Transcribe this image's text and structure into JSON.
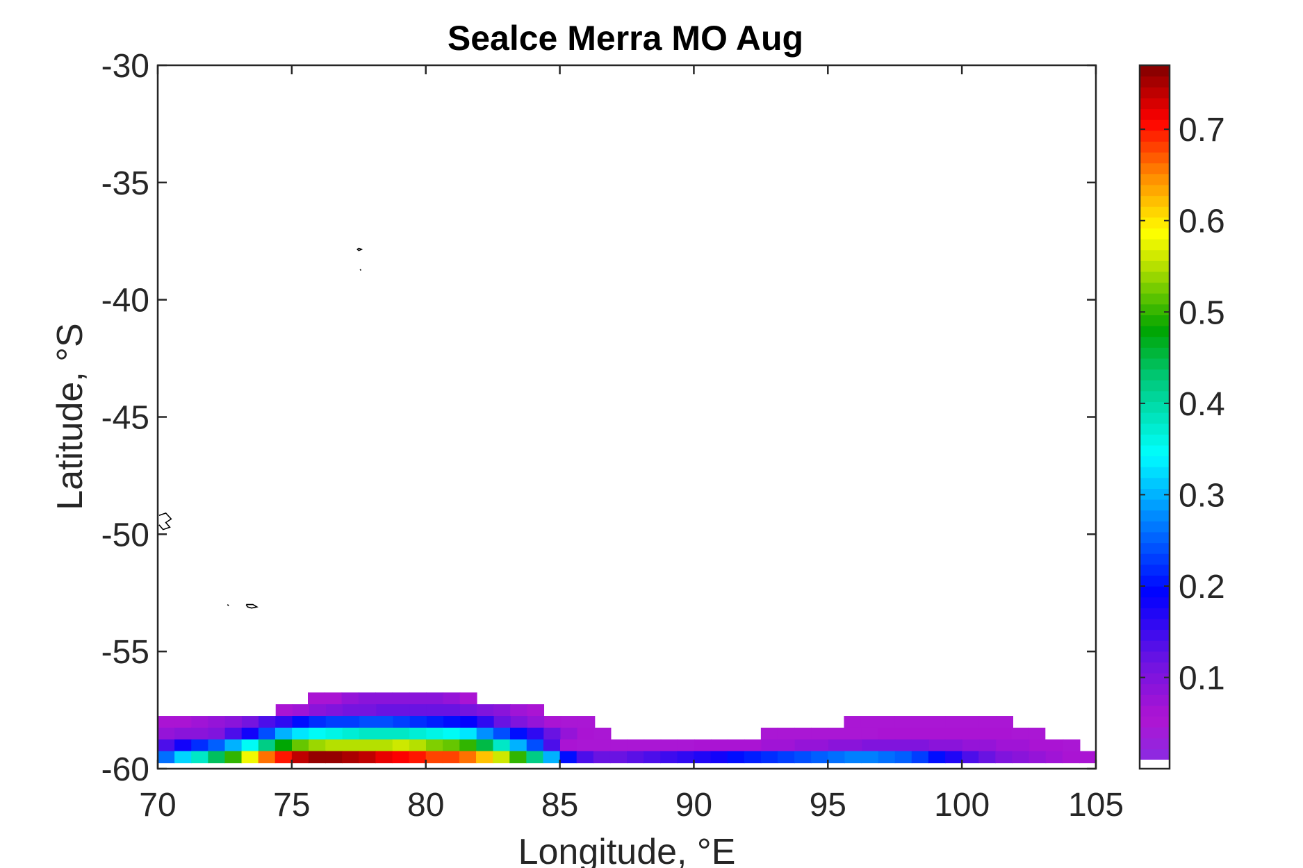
{
  "chart_data": {
    "type": "heatmap",
    "title": "Sealce Merra MO Aug",
    "xlabel": "Longitude, °E",
    "ylabel": "Latitude, °S",
    "xlim": [
      70,
      105
    ],
    "ylim": [
      -60,
      -30
    ],
    "x_ticks": [
      70,
      75,
      80,
      85,
      90,
      95,
      100,
      105
    ],
    "x_tick_labels": [
      "70",
      "75",
      "80",
      "85",
      "90",
      "95",
      "100",
      "105"
    ],
    "y_ticks": [
      -30,
      -35,
      -40,
      -45,
      -50,
      -55,
      -60
    ],
    "y_tick_labels": [
      "-30",
      "-35",
      "-40",
      "-45",
      "-50",
      "-55",
      "-60"
    ],
    "colorbar": {
      "colormap": "jet-with-magenta-low",
      "range": [
        0.01,
        0.77
      ],
      "ticks": [
        0.1,
        0.2,
        0.3,
        0.4,
        0.5,
        0.6,
        0.7
      ],
      "tick_labels": [
        "0.1",
        "0.2",
        "0.3",
        "0.4",
        "0.5",
        "0.6",
        "0.7"
      ],
      "below_min_color": "#ffffff"
    },
    "grid": {
      "cell_lon": 0.625,
      "cell_lat": 0.5,
      "row_lat_centers": [
        -57.0,
        -57.5,
        -58.0,
        -58.5,
        -59.0,
        -59.5
      ],
      "rows": [
        {
          "lat": -57.0,
          "segments": [
            {
              "lon_from": 75.6,
              "lon_to": 81.9,
              "values": [
                0.06,
                0.06,
                0.08,
                0.09,
                0.09,
                0.09,
                0.09,
                0.09,
                0.08,
                0.06
              ]
            }
          ]
        },
        {
          "lat": -57.5,
          "segments": [
            {
              "lon_from": 74.4,
              "lon_to": 84.4,
              "values": [
                0.06,
                0.07,
                0.09,
                0.1,
                0.11,
                0.11,
                0.12,
                0.12,
                0.12,
                0.12,
                0.12,
                0.11,
                0.1,
                0.09,
                0.07,
                0.06
              ]
            }
          ]
        },
        {
          "lat": -58.0,
          "segments": [
            {
              "lon_from": 70.0,
              "lon_to": 86.3,
              "values": [
                0.06,
                0.06,
                0.07,
                0.08,
                0.09,
                0.11,
                0.14,
                0.16,
                0.2,
                0.22,
                0.23,
                0.23,
                0.24,
                0.24,
                0.23,
                0.22,
                0.21,
                0.2,
                0.19,
                0.16,
                0.12,
                0.1,
                0.08,
                0.06,
                0.05,
                0.05
              ]
            },
            {
              "lon_from": 95.6,
              "lon_to": 101.9,
              "values": [
                0.05,
                0.05,
                0.05,
                0.05,
                0.05,
                0.05,
                0.05,
                0.05,
                0.05,
                0.05
              ]
            }
          ]
        },
        {
          "lat": -58.5,
          "segments": [
            {
              "lon_from": 70.0,
              "lon_to": 86.9,
              "values": [
                0.08,
                0.09,
                0.09,
                0.1,
                0.14,
                0.18,
                0.24,
                0.3,
                0.33,
                0.35,
                0.36,
                0.37,
                0.38,
                0.38,
                0.38,
                0.37,
                0.36,
                0.35,
                0.33,
                0.28,
                0.24,
                0.2,
                0.16,
                0.12,
                0.08,
                0.06,
                0.05
              ]
            },
            {
              "lon_from": 92.5,
              "lon_to": 103.1,
              "values": [
                0.05,
                0.05,
                0.05,
                0.05,
                0.05,
                0.05,
                0.05,
                0.06,
                0.06,
                0.06,
                0.06,
                0.06,
                0.06,
                0.06,
                0.06,
                0.05,
                0.05
              ]
            }
          ]
        },
        {
          "lat": -59.0,
          "segments": [
            {
              "lon_from": 70.0,
              "lon_to": 104.4,
              "values": [
                0.14,
                0.18,
                0.22,
                0.25,
                0.3,
                0.35,
                0.42,
                0.48,
                0.52,
                0.54,
                0.55,
                0.55,
                0.55,
                0.55,
                0.56,
                0.55,
                0.53,
                0.52,
                0.5,
                0.45,
                0.38,
                0.3,
                0.24,
                0.14,
                0.06,
                0.05,
                0.05,
                0.05,
                0.05,
                0.05,
                0.05,
                0.05,
                0.06,
                0.06,
                0.06,
                0.06,
                0.07,
                0.07,
                0.08,
                0.08,
                0.09,
                0.09,
                0.1,
                0.1,
                0.1,
                0.1,
                0.09,
                0.09,
                0.08,
                0.08,
                0.07,
                0.07,
                0.06,
                0.06,
                0.05
              ]
            }
          ]
        },
        {
          "lat": -59.5,
          "segments": [
            {
              "lon_from": 70.0,
              "lon_to": 105.0,
              "values": [
                0.26,
                0.32,
                0.38,
                0.44,
                0.5,
                0.58,
                0.66,
                0.7,
                0.74,
                0.76,
                0.76,
                0.75,
                0.74,
                0.72,
                0.71,
                0.7,
                0.68,
                0.68,
                0.66,
                0.62,
                0.56,
                0.5,
                0.42,
                0.3,
                0.2,
                0.14,
                0.12,
                0.12,
                0.13,
                0.14,
                0.15,
                0.16,
                0.17,
                0.18,
                0.2,
                0.21,
                0.22,
                0.23,
                0.24,
                0.25,
                0.26,
                0.27,
                0.27,
                0.26,
                0.25,
                0.23,
                0.2,
                0.17,
                0.14,
                0.12,
                0.1,
                0.09,
                0.08,
                0.07,
                0.06,
                0.06
              ]
            }
          ]
        }
      ]
    },
    "coastline_lonlat": [
      [
        [
          77.5,
          -37.8
        ],
        [
          77.6,
          -37.85
        ],
        [
          77.5,
          -37.9
        ],
        [
          77.45,
          -37.85
        ],
        [
          77.5,
          -37.8
        ]
      ],
      [
        [
          77.55,
          -38.7
        ],
        [
          77.58,
          -38.75
        ]
      ],
      [
        [
          70.05,
          -49.2
        ],
        [
          70.3,
          -49.1
        ],
        [
          70.5,
          -49.35
        ],
        [
          70.3,
          -49.5
        ],
        [
          70.45,
          -49.7
        ],
        [
          70.2,
          -49.8
        ],
        [
          70.05,
          -49.6
        ]
      ],
      [
        [
          73.3,
          -53.0
        ],
        [
          73.55,
          -53.0
        ],
        [
          73.7,
          -53.1
        ],
        [
          73.5,
          -53.15
        ],
        [
          73.35,
          -53.1
        ],
        [
          73.3,
          -53.0
        ]
      ],
      [
        [
          72.6,
          -53.0
        ],
        [
          72.65,
          -53.05
        ]
      ]
    ]
  }
}
